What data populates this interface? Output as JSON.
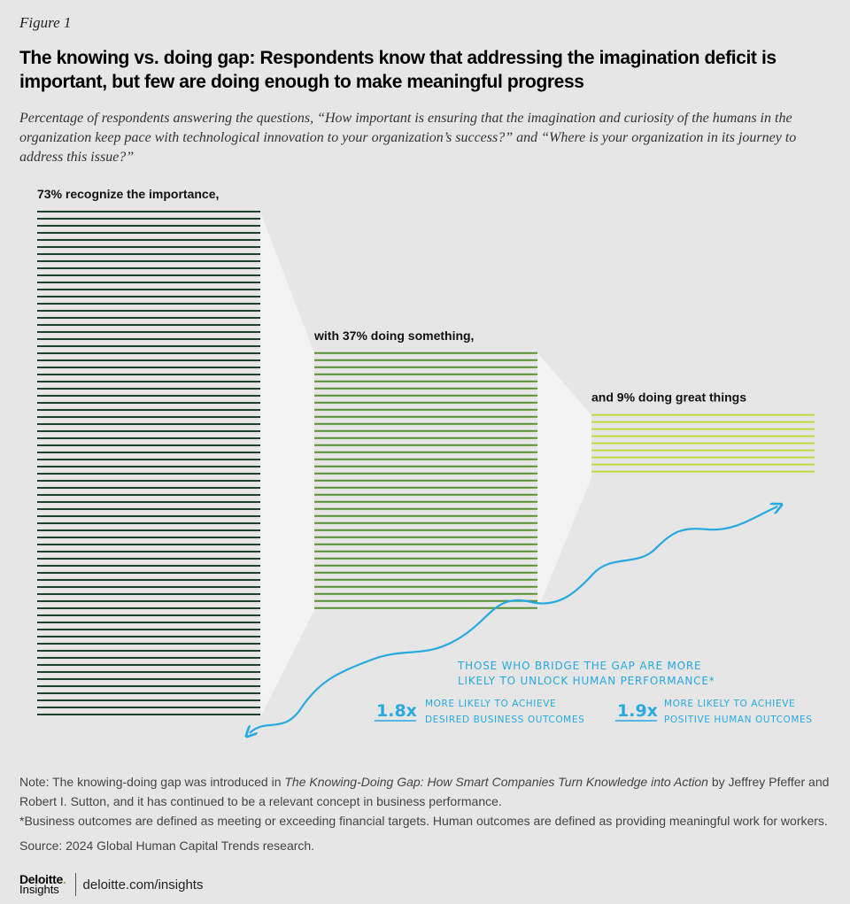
{
  "figure_label": "Figure 1",
  "title": "The knowing vs. doing gap: Respondents know that addressing the imagination deficit is important, but few are doing enough to make meaningful progress",
  "subtitle": "Percentage of respondents answering the questions, “How important is ensuring that the imagination and curiosity of the humans in the organization keep pace with technological innovation to your organization’s success?” and “Where is your organization in its journey to address this issue?”",
  "colors": {
    "background": "#e6e6e6",
    "funnel": "#f3f3f3",
    "bar_dark": "#1f3d2b",
    "bar_mid": "#5b8f35",
    "bar_light": "#c2d943",
    "accent_blue": "#27a9e1"
  },
  "chart_data": {
    "type": "bar",
    "categories": [
      "73% recognize the importance,",
      "with 37% doing something,",
      "and 9% doing great things"
    ],
    "values": [
      73,
      37,
      9
    ],
    "unit": "%",
    "callout": {
      "heading": "THOSE WHO BRIDGE THE GAP ARE MORE LIKELY TO UNLOCK HUMAN PERFORMANCE*",
      "stats": [
        {
          "value": "1.8x",
          "text": "MORE LIKELY TO ACHIEVE DESIRED BUSINESS OUTCOMES"
        },
        {
          "value": "1.9x",
          "text": "MORE LIKELY TO ACHIEVE POSITIVE HUMAN OUTCOMES"
        }
      ]
    }
  },
  "notes": {
    "note_prefix": "Note: The knowing-doing gap was introduced in ",
    "book_title": "The Knowing-Doing Gap: How Smart Companies Turn Knowledge into Action",
    "note_suffix": " by Jeffrey Pfeffer and Robert I. Sutton, and it has continued to be a relevant concept in business performance.",
    "footnote": "*Business outcomes are defined as meeting or exceeding financial targets. Human outcomes are defined as providing meaningful work for workers.",
    "source": "Source: 2024 Global Human Capital Trends research."
  },
  "footer": {
    "logo_top": "Deloitte",
    "logo_dot": ".",
    "logo_bottom": "Insights",
    "url": "deloitte.com/insights"
  }
}
